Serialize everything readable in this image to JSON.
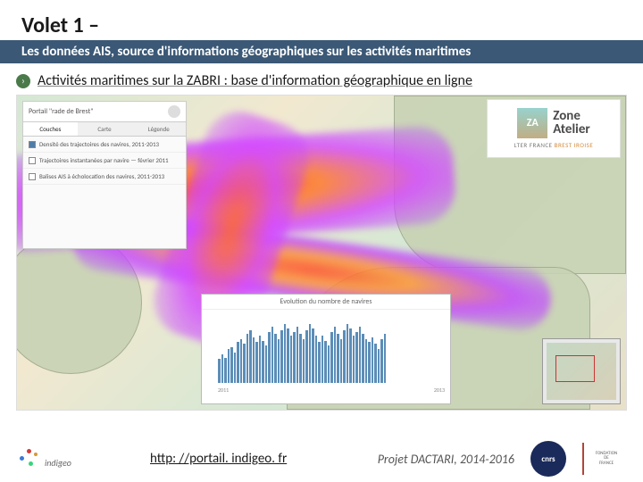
{
  "header": {
    "title": "Volet 1 –",
    "subtitle": "Les données AIS, source d'informations géographiques sur les activités maritimes"
  },
  "bullet": {
    "icon_glyph": "›",
    "text": "Activités maritimes sur la ZABRI : base d'information géographique en ligne"
  },
  "map": {
    "sidebar": {
      "header_text": "Portail \"rade de Brest\"",
      "tabs": [
        "Couches",
        "Carte",
        "Légende"
      ],
      "items": [
        {
          "checked": true,
          "label": "Densité des trajectoires des navires, 2011-2013"
        },
        {
          "checked": false,
          "label": "Trajectoires instantanées par navire — février 2011"
        },
        {
          "checked": false,
          "label": "Balises AIS à écholocation des navires, 2011-2013"
        }
      ]
    },
    "zone_logo": {
      "main": "Zone",
      "sub": "Atelier",
      "caption_left": "LTER FRANCE",
      "caption_right": "BREST IROISE"
    },
    "chart": {
      "type": "bar",
      "title": "Evolution du nombre de navires",
      "x_start": "2011",
      "x_end": "2013",
      "values": [
        28,
        34,
        30,
        40,
        42,
        36,
        48,
        52,
        46,
        58,
        62,
        54,
        48,
        56,
        50,
        44,
        60,
        66,
        58,
        52,
        62,
        70,
        64,
        56,
        60,
        66,
        58,
        52,
        62,
        70,
        64,
        56,
        48,
        56,
        50,
        44,
        60,
        66,
        58,
        52,
        62,
        70,
        64,
        56,
        60,
        66,
        58,
        52,
        48,
        54,
        46,
        40,
        52,
        58
      ],
      "bar_color": "#5b8db8",
      "ylim": [
        0,
        80
      ],
      "background_color": "#ffffff",
      "grid_color": "#e8e8e8",
      "title_fontsize": 8,
      "label_fontsize": 6
    },
    "heatmap_colors": [
      "#ff2a2a",
      "#ff7a2a",
      "#d44aff",
      "#7846ff"
    ],
    "land_color": "#c8d2b4",
    "sea_color": "#f2e8d0"
  },
  "footer": {
    "indigeo_label": "indigeo",
    "link": "http: //portail. indigeo. fr",
    "project": "Projet DACTARI, 2014-2016",
    "cnrs": "cnrs",
    "fdf_lines": [
      "FONDATION",
      "DE",
      "FRANCE"
    ]
  },
  "colors": {
    "header_bar": "#3b5876",
    "bullet_bg": "#4a7a4a",
    "text": "#1a1a1a",
    "subtle": "#555555"
  }
}
